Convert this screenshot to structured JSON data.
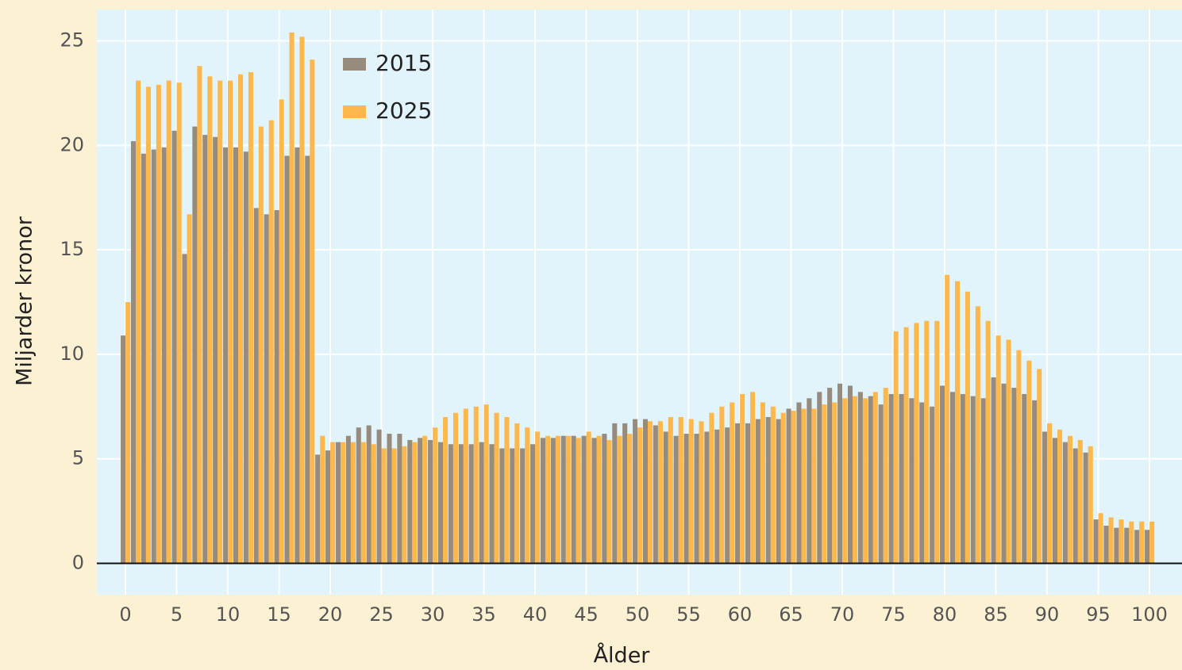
{
  "chart_data": {
    "type": "bar",
    "ylabel": "Miljarder kronor",
    "xlabel": "Ålder",
    "categories": [
      "0",
      null,
      null,
      null,
      null,
      "5",
      null,
      null,
      null,
      null,
      "10",
      null,
      null,
      null,
      null,
      "15",
      null,
      null,
      null,
      null,
      "20",
      null,
      null,
      null,
      null,
      "25",
      null,
      null,
      null,
      null,
      "30",
      null,
      null,
      null,
      null,
      "35",
      null,
      null,
      null,
      null,
      "40",
      null,
      null,
      null,
      null,
      "45",
      null,
      null,
      null,
      null,
      "50",
      null,
      null,
      null,
      null,
      "55",
      null,
      null,
      null,
      null,
      "60",
      null,
      null,
      null,
      null,
      "65",
      null,
      null,
      null,
      null,
      "70",
      null,
      null,
      null,
      null,
      "75",
      null,
      null,
      null,
      null,
      "80",
      null,
      null,
      null,
      null,
      "85",
      null,
      null,
      null,
      null,
      "90",
      null,
      null,
      null,
      null,
      "95",
      null,
      null,
      null,
      null,
      "100"
    ],
    "series": [
      {
        "name": "2015",
        "color": "#978b7e",
        "values": [
          10.9,
          20.2,
          19.6,
          19.8,
          19.9,
          20.7,
          14.8,
          20.9,
          20.5,
          20.4,
          19.9,
          19.9,
          19.7,
          17.0,
          16.7,
          16.9,
          19.5,
          19.9,
          19.5,
          5.2,
          5.4,
          5.8,
          6.1,
          6.5,
          6.6,
          6.4,
          6.2,
          6.2,
          5.9,
          6.0,
          5.9,
          5.8,
          5.7,
          5.7,
          5.7,
          5.8,
          5.7,
          5.5,
          5.5,
          5.5,
          5.7,
          6.0,
          6.0,
          6.1,
          6.1,
          6.1,
          6.0,
          6.2,
          6.7,
          6.7,
          6.9,
          6.9,
          6.6,
          6.3,
          6.1,
          6.2,
          6.2,
          6.3,
          6.4,
          6.5,
          6.7,
          6.7,
          6.9,
          7.0,
          6.9,
          7.4,
          7.7,
          7.9,
          8.2,
          8.4,
          8.6,
          8.5,
          8.2,
          8.0,
          7.6,
          8.1,
          8.1,
          7.9,
          7.7,
          7.5,
          8.5,
          8.2,
          8.1,
          8.0,
          7.9,
          8.9,
          8.6,
          8.4,
          8.1,
          7.8,
          6.3,
          6.0,
          5.8,
          5.5,
          5.3,
          2.1,
          1.8,
          1.7,
          1.7,
          1.6,
          1.6
        ]
      },
      {
        "name": "2025",
        "color": "#fdb84c",
        "values": [
          12.5,
          23.1,
          22.8,
          22.9,
          23.1,
          23.0,
          16.7,
          23.8,
          23.3,
          23.1,
          23.1,
          23.4,
          23.5,
          20.9,
          21.2,
          22.2,
          25.4,
          25.2,
          24.1,
          6.1,
          5.8,
          5.8,
          5.8,
          5.8,
          5.7,
          5.5,
          5.5,
          5.6,
          5.8,
          6.1,
          6.5,
          7.0,
          7.2,
          7.4,
          7.5,
          7.6,
          7.2,
          7.0,
          6.7,
          6.5,
          6.3,
          6.1,
          6.1,
          6.1,
          6.0,
          6.3,
          6.1,
          5.9,
          6.1,
          6.2,
          6.5,
          6.8,
          6.8,
          7.0,
          7.0,
          6.9,
          6.8,
          7.2,
          7.5,
          7.7,
          8.1,
          8.2,
          7.7,
          7.5,
          7.2,
          7.3,
          7.4,
          7.4,
          7.6,
          7.7,
          7.9,
          8.0,
          7.9,
          8.2,
          8.4,
          11.1,
          11.3,
          11.5,
          11.6,
          11.6,
          13.8,
          13.5,
          13.0,
          12.3,
          11.6,
          10.9,
          10.7,
          10.2,
          9.7,
          9.3,
          6.7,
          6.4,
          6.1,
          5.9,
          5.6,
          2.4,
          2.2,
          2.1,
          2.0,
          2.0,
          2.0
        ]
      }
    ],
    "ylim": [
      -1.5,
      26.5
    ],
    "yticks": [
      0,
      5,
      10,
      15,
      20,
      25
    ],
    "grid": true,
    "legend": "upper left"
  }
}
